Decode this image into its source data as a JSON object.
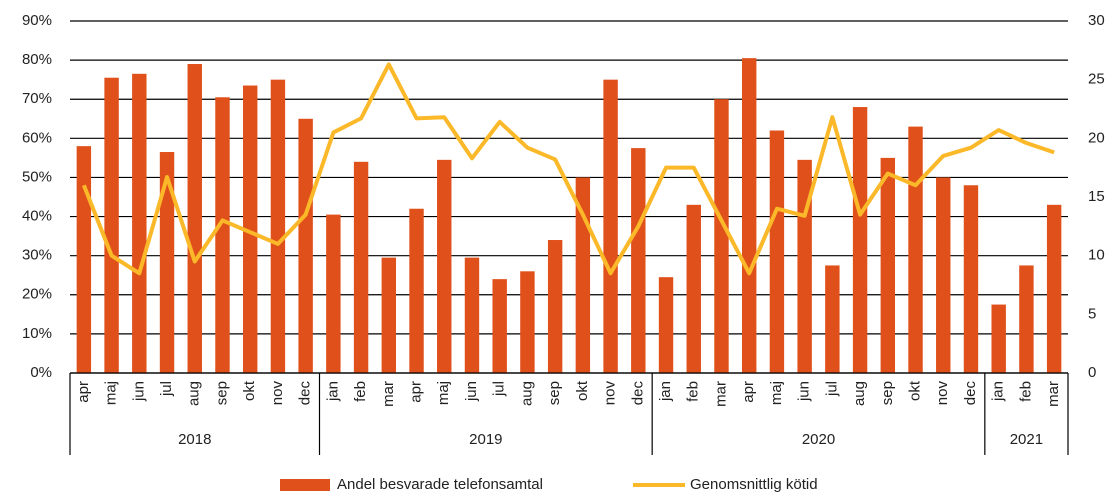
{
  "chart_data": {
    "type": "combo",
    "groups": [
      {
        "name": "2018",
        "categories": [
          "apr",
          "maj",
          "jun",
          "jul",
          "aug",
          "sep",
          "okt",
          "nov",
          "dec"
        ]
      },
      {
        "name": "2019",
        "categories": [
          "jan",
          "feb",
          "mar",
          "apr",
          "maj",
          "jun",
          "jul",
          "aug",
          "sep",
          "okt",
          "nov",
          "dec"
        ]
      },
      {
        "name": "2020",
        "categories": [
          "jan",
          "feb",
          "mar",
          "apr",
          "maj",
          "jun",
          "jul",
          "aug",
          "sep",
          "okt",
          "nov",
          "dec"
        ]
      },
      {
        "name": "2021",
        "categories": [
          "jan",
          "feb",
          "mar"
        ]
      }
    ],
    "series": [
      {
        "name": "Andel besvarade telefonsamtal",
        "type": "bar",
        "color": "#e0501a",
        "values": [
          58,
          75.5,
          76.5,
          56.5,
          79,
          70.5,
          73.5,
          75,
          65,
          40.5,
          54,
          29.5,
          42,
          54.5,
          29.5,
          24,
          26,
          34,
          50,
          75,
          57.5,
          24.5,
          43,
          70,
          80.5,
          62,
          54.5,
          27.5,
          68,
          55,
          63,
          50,
          48,
          17.5,
          27.5,
          43
        ]
      },
      {
        "name": "Genomsnittlig kötid",
        "type": "line",
        "axis": "y2",
        "color": "#fbb829",
        "values": [
          16,
          10,
          8.5,
          16.7,
          9.5,
          13,
          12,
          11,
          13.5,
          20.5,
          21.7,
          26.3,
          21.7,
          21.8,
          18.3,
          21.4,
          19.2,
          18.2,
          13.5,
          8.5,
          12.5,
          17.5,
          17.5,
          13,
          8.5,
          14,
          13.4,
          21.8,
          13.5,
          17,
          16,
          18.5,
          19.2,
          20.7,
          19.6,
          18.8
        ]
      }
    ],
    "ylim": [
      0,
      90
    ],
    "yticks": [
      {
        "value": 0,
        "label": "0%"
      },
      {
        "value": 10,
        "label": "10%"
      },
      {
        "value": 20,
        "label": "20%"
      },
      {
        "value": 30,
        "label": "30%"
      },
      {
        "value": 40,
        "label": "40%"
      },
      {
        "value": 50,
        "label": "50%"
      },
      {
        "value": 60,
        "label": "60%"
      },
      {
        "value": 70,
        "label": "70%"
      },
      {
        "value": 80,
        "label": "80%"
      },
      {
        "value": 90,
        "label": "90%"
      }
    ],
    "y2lim": [
      0,
      30
    ],
    "y2ticks": [
      0,
      5,
      10,
      15,
      20,
      25,
      30
    ],
    "grid": true,
    "legend": "bottom"
  }
}
